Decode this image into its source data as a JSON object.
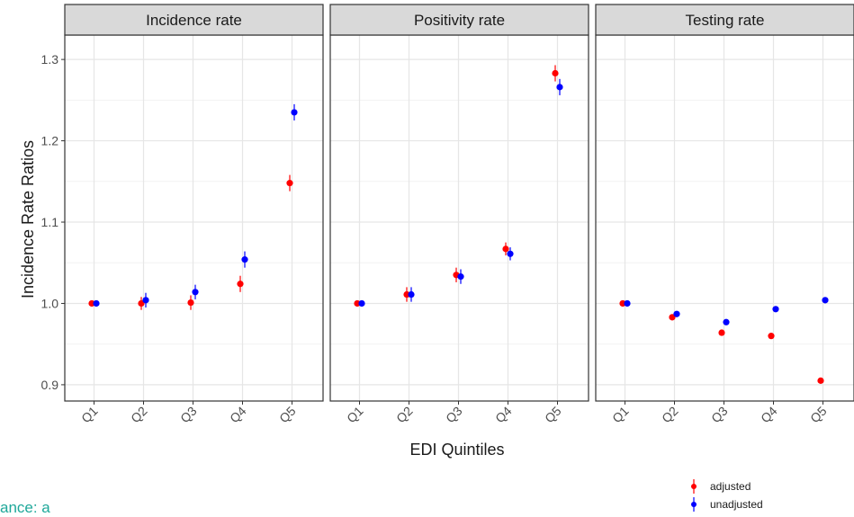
{
  "chart_data": {
    "type": "scatter",
    "facets": [
      "Incidence rate",
      "Positivity rate",
      "Testing rate"
    ],
    "categories": [
      "Q1",
      "Q2",
      "Q3",
      "Q4",
      "Q5"
    ],
    "xlabel": "EDI Quintiles",
    "ylabel": "Incidence Rate Ratios",
    "ylim": [
      0.88,
      1.33
    ],
    "yticks": [
      0.9,
      1.0,
      1.1,
      1.2,
      1.3
    ],
    "ytick_labels": [
      "0.9",
      "1.0",
      "1.1",
      "1.2",
      "1.3"
    ],
    "grid": true,
    "legend_position": "bottom-right",
    "series": [
      {
        "name": "adjusted",
        "color": "#ff0000",
        "values": {
          "Incidence rate": [
            1.0,
            1.0,
            1.001,
            1.024,
            1.148
          ],
          "Positivity rate": [
            1.0,
            1.011,
            1.035,
            1.067,
            1.283
          ],
          "Testing rate": [
            1.0,
            0.983,
            0.964,
            0.96,
            0.905
          ]
        },
        "errors": {
          "Incidence rate": [
            0.002,
            0.008,
            0.009,
            0.01,
            0.01
          ],
          "Positivity rate": [
            0.002,
            0.009,
            0.009,
            0.008,
            0.01
          ],
          "Testing rate": [
            0.002,
            0.003,
            0.003,
            0.003,
            0.003
          ]
        }
      },
      {
        "name": "unadjusted",
        "color": "#0000ff",
        "values": {
          "Incidence rate": [
            1.0,
            1.004,
            1.014,
            1.054,
            1.235
          ],
          "Positivity rate": [
            1.0,
            1.011,
            1.033,
            1.061,
            1.266
          ],
          "Testing rate": [
            1.0,
            0.987,
            0.977,
            0.993,
            1.004
          ]
        },
        "errors": {
          "Incidence rate": [
            0.002,
            0.009,
            0.009,
            0.01,
            0.01
          ],
          "Positivity rate": [
            0.002,
            0.009,
            0.009,
            0.008,
            0.01
          ],
          "Testing rate": [
            0.002,
            0.003,
            0.003,
            0.003,
            0.003
          ]
        }
      }
    ]
  },
  "footer": {
    "clipped_text": "ance: a"
  }
}
